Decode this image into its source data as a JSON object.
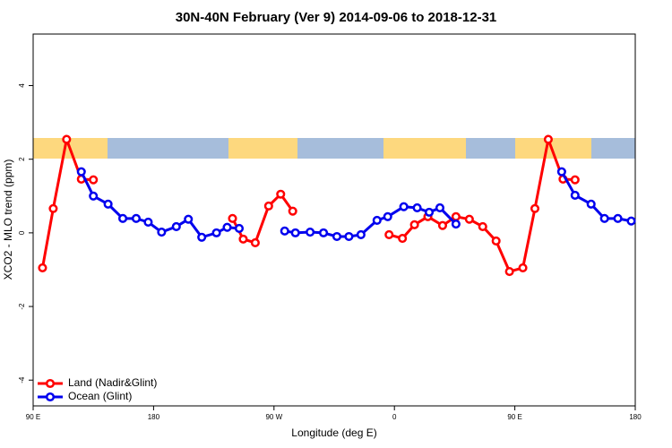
{
  "chart_data": {
    "type": "line",
    "title": "30N-40N February (Ver 9)   2014-09-06 to 2018-12-31",
    "x_label": "Longitude (deg E)",
    "y_label": "XCO2 - MLO trend (ppm)",
    "xlim": [
      90,
      540
    ],
    "ylim": [
      -4.7,
      5.4
    ],
    "xticks": [
      {
        "value": 90,
        "label": "90 E"
      },
      180,
      {
        "value": 270,
        "label": "90 W"
      },
      {
        "value": 360,
        "label": "0"
      },
      {
        "value": 450,
        "label": "90 E"
      },
      {
        "value": 540,
        "label": "180"
      }
    ],
    "yticks": [
      -4,
      -2,
      0,
      2,
      4
    ],
    "legend": "bottom-left",
    "series": [
      {
        "name": "Land (Nadir&Glint)",
        "color": "#ff0000",
        "x": [
          97,
          105,
          115,
          126,
          135,
          null,
          239,
          247,
          256,
          266,
          275,
          284,
          null,
          356,
          366,
          375,
          385,
          396,
          406,
          416,
          426,
          436,
          446,
          456,
          465,
          475,
          486,
          495
        ],
        "values": [
          -0.95,
          0.66,
          2.54,
          1.46,
          1.44,
          null,
          0.39,
          -0.17,
          -0.27,
          0.73,
          1.05,
          0.59,
          null,
          -0.05,
          -0.15,
          0.22,
          0.44,
          0.2,
          0.44,
          0.37,
          0.17,
          -0.22,
          -1.05,
          -0.95,
          0.66,
          2.54,
          1.46,
          1.44
        ]
      },
      {
        "name": "Ocean (Glint)",
        "color": "#0000ee",
        "x": [
          126,
          135,
          146,
          157,
          167,
          176,
          186,
          197,
          206,
          216,
          227,
          235,
          244,
          null,
          278,
          286,
          297,
          307,
          317,
          326,
          335,
          347,
          355,
          367,
          377,
          386,
          394,
          406,
          null,
          485,
          495,
          507,
          517,
          527,
          537
        ],
        "values": [
          1.66,
          1.0,
          0.78,
          0.39,
          0.39,
          0.29,
          0.02,
          0.17,
          0.37,
          -0.12,
          0,
          0.15,
          0.12,
          null,
          0.05,
          0,
          0.02,
          0,
          -0.1,
          -0.1,
          -0.05,
          0.34,
          0.44,
          0.71,
          0.68,
          0.56,
          0.68,
          0.24,
          null,
          1.66,
          1.02,
          0.78,
          0.39,
          0.39,
          0.32
        ]
      }
    ]
  }
}
